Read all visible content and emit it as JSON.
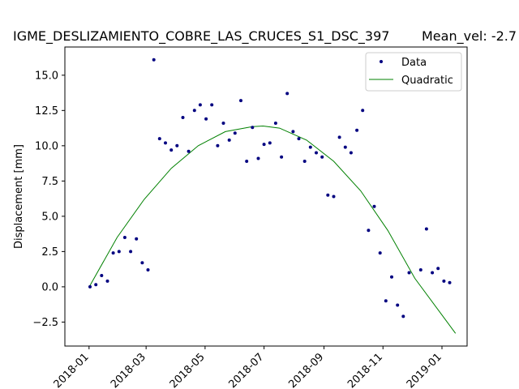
{
  "chart_data": {
    "type": "scatter",
    "title": "IGME_DESLIZAMIENTO_COBRE_LAS_CRUCES_S1_DSC_397",
    "subtitle": "Mean_vel: -2.7",
    "xlabel": "",
    "ylabel": "Displacement [mm]",
    "xlim": [
      "2017-12-07",
      "2019-01-27"
    ],
    "ylim": [
      -4.2,
      17.0
    ],
    "x_ticks": [
      "2018-01",
      "2018-03",
      "2018-05",
      "2018-07",
      "2018-09",
      "2018-11",
      "2019-01"
    ],
    "y_ticks": [
      -2.5,
      0.0,
      2.5,
      5.0,
      7.5,
      10.0,
      12.5,
      15.0
    ],
    "y_tick_labels": [
      "−2.5",
      "0.0",
      "2.5",
      "5.0",
      "7.5",
      "10.0",
      "12.5",
      "15.0"
    ],
    "grid": false,
    "legend_position": "top-right",
    "series": [
      {
        "name": "Data",
        "kind": "points",
        "color": "#000080",
        "x": [
          "2018-01-02",
          "2018-01-08",
          "2018-01-14",
          "2018-01-20",
          "2018-01-26",
          "2018-02-01",
          "2018-02-07",
          "2018-02-13",
          "2018-02-19",
          "2018-02-25",
          "2018-03-03",
          "2018-03-09",
          "2018-03-15",
          "2018-03-21",
          "2018-03-27",
          "2018-04-02",
          "2018-04-08",
          "2018-04-14",
          "2018-04-20",
          "2018-04-26",
          "2018-05-02",
          "2018-05-08",
          "2018-05-14",
          "2018-05-20",
          "2018-05-26",
          "2018-06-01",
          "2018-06-07",
          "2018-06-13",
          "2018-06-19",
          "2018-06-25",
          "2018-07-01",
          "2018-07-07",
          "2018-07-13",
          "2018-07-19",
          "2018-07-25",
          "2018-07-31",
          "2018-08-06",
          "2018-08-12",
          "2018-08-18",
          "2018-08-24",
          "2018-08-30",
          "2018-09-05",
          "2018-09-11",
          "2018-09-17",
          "2018-09-23",
          "2018-09-29",
          "2018-10-05",
          "2018-10-11",
          "2018-10-17",
          "2018-10-23",
          "2018-10-29",
          "2018-11-04",
          "2018-11-10",
          "2018-11-16",
          "2018-11-22",
          "2018-11-28",
          "2018-12-10",
          "2018-12-16",
          "2018-12-22",
          "2018-12-28",
          "2019-01-03",
          "2019-01-09",
          "2019-01-15"
        ],
        "y": [
          0.0,
          0.15,
          0.8,
          0.4,
          2.4,
          2.5,
          3.5,
          2.5,
          3.4,
          1.7,
          1.2,
          16.1,
          10.5,
          10.2,
          9.7,
          10.0,
          12.0,
          9.6,
          12.5,
          12.9,
          11.9,
          12.9,
          10.0,
          11.6,
          10.4,
          10.9,
          13.2,
          8.9,
          11.3,
          9.1,
          10.1,
          10.2,
          11.6,
          9.2,
          13.7,
          11.0,
          10.5,
          8.9,
          9.9,
          9.5,
          9.2,
          6.5,
          6.4,
          10.6,
          9.9,
          9.5,
          11.1,
          12.5,
          4.0,
          5.7,
          2.4,
          -1.0,
          0.7,
          -1.3,
          -2.1,
          1.0,
          1.2,
          4.1,
          1.0,
          1.3,
          0.4,
          0.3,
          null
        ]
      },
      {
        "name": "Quadratic",
        "kind": "line",
        "color": "#008000",
        "x": [
          "2018-01-02",
          "2018-01-30",
          "2018-02-27",
          "2018-03-27",
          "2018-04-24",
          "2018-05-22",
          "2018-06-19",
          "2018-06-30",
          "2018-07-17",
          "2018-08-14",
          "2018-09-11",
          "2018-10-09",
          "2018-11-06",
          "2018-12-04",
          "2019-01-01",
          "2019-01-15"
        ],
        "y": [
          0.1,
          3.5,
          6.2,
          8.4,
          10.0,
          11.0,
          11.35,
          11.4,
          11.25,
          10.4,
          8.9,
          6.8,
          4.0,
          0.6,
          -2.0,
          -3.3
        ]
      }
    ]
  }
}
